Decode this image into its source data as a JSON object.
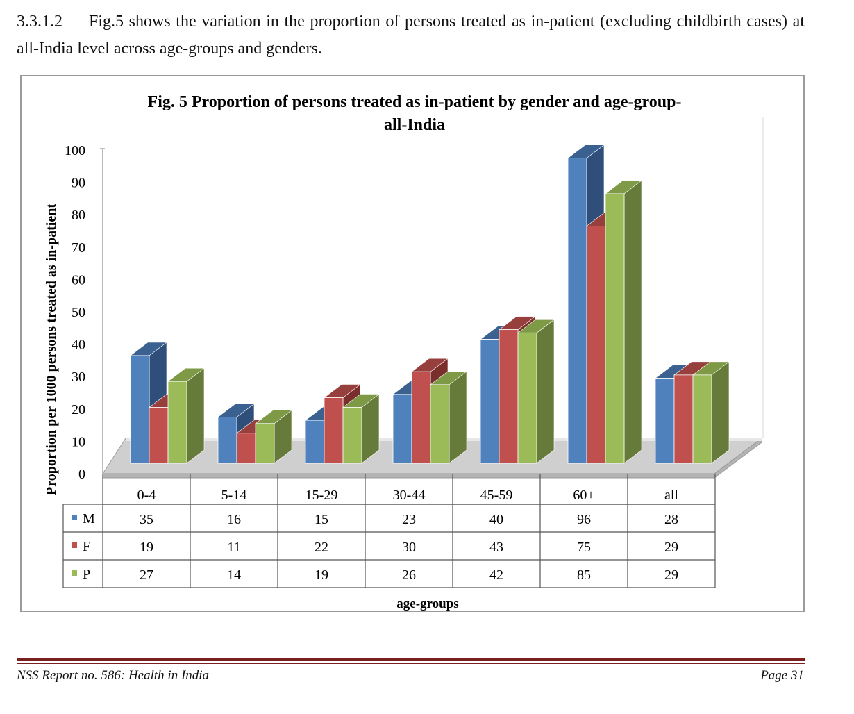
{
  "paragraph": {
    "number": "3.3.1.2",
    "text": "Fig.5 shows the variation in the proportion of persons treated as in-patient (excluding childbirth cases) at all-India level across age-groups and genders."
  },
  "chart_data": {
    "type": "bar",
    "title": "Fig. 5 Proportion of persons treated as in-patient by gender and age-group-all-India",
    "title_line1": "Fig. 5 Proportion of persons treated as in-patient by gender and age-group-",
    "title_line2": "all-India",
    "xlabel": "age-groups",
    "ylabel": "Proportion per 1000 persons treated as in-patient",
    "ylim": [
      0,
      100
    ],
    "yticks": [
      0,
      10,
      20,
      30,
      40,
      50,
      60,
      70,
      80,
      90,
      100
    ],
    "categories": [
      "0-4",
      "5-14",
      "15-29",
      "30-44",
      "45-59",
      "60+",
      "all"
    ],
    "series": [
      {
        "name": "M",
        "values": [
          35,
          16,
          15,
          23,
          40,
          96,
          28
        ],
        "color": "#4f81bd",
        "side": "#2f4f7a",
        "top": "#3b6190"
      },
      {
        "name": "F",
        "values": [
          19,
          11,
          22,
          30,
          43,
          75,
          29
        ],
        "color": "#c0504d",
        "side": "#7a2f2d",
        "top": "#963f3c"
      },
      {
        "name": "P",
        "values": [
          27,
          14,
          19,
          26,
          42,
          85,
          29
        ],
        "color": "#9bbb59",
        "side": "#667a3a",
        "top": "#7e9a46"
      }
    ],
    "grid": false,
    "legend": "data-table-left"
  },
  "footer": {
    "left": "NSS Report no. 586: Health in India",
    "right": "Page 31"
  }
}
